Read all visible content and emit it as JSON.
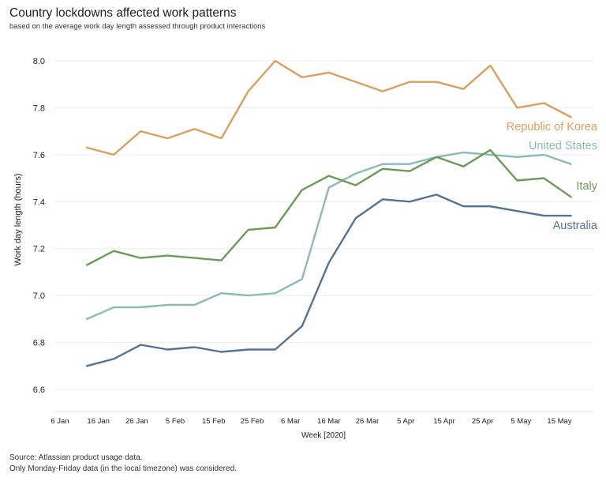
{
  "chart_data": {
    "type": "line",
    "title": "Country lockdowns affected work patterns",
    "subtitle": "based on the average work day length assessed through product interactions",
    "xlabel": "Week [2020]",
    "ylabel": "Work day length (hours)",
    "ylim": [
      6.6,
      8.0
    ],
    "yticks": [
      "6.6",
      "6.8",
      "7.0",
      "7.2",
      "7.4",
      "7.6",
      "7.8",
      "8.0"
    ],
    "xticks": [
      "6 Jan",
      "16 Jan",
      "26 Jan",
      "5 Feb",
      "15 Feb",
      "25 Feb",
      "6 Mar",
      "16 Mar",
      "26 Mar",
      "5 Apr",
      "15 Apr",
      "25 Apr",
      "5 May",
      "15 May"
    ],
    "x": [
      "2020-01-13",
      "2020-01-20",
      "2020-01-27",
      "2020-02-03",
      "2020-02-10",
      "2020-02-17",
      "2020-02-24",
      "2020-03-02",
      "2020-03-09",
      "2020-03-16",
      "2020-03-23",
      "2020-03-30",
      "2020-04-06",
      "2020-04-13",
      "2020-04-20",
      "2020-04-27",
      "2020-05-04",
      "2020-05-11",
      "2020-05-18"
    ],
    "grid": true,
    "legend": "direct labels at line ends",
    "series": [
      {
        "name": "Republic of Korea",
        "color": "#d9a05b",
        "values": [
          7.63,
          7.6,
          7.7,
          7.67,
          7.71,
          7.67,
          7.87,
          8.0,
          7.93,
          7.95,
          7.91,
          7.87,
          7.91,
          7.91,
          7.88,
          7.98,
          7.8,
          7.82,
          7.76
        ]
      },
      {
        "name": "United States",
        "color": "#8cbab4",
        "values": [
          6.9,
          6.95,
          6.95,
          6.96,
          6.96,
          7.01,
          7.0,
          7.01,
          7.07,
          7.46,
          7.52,
          7.56,
          7.56,
          7.59,
          7.61,
          7.6,
          7.59,
          7.6,
          7.56
        ]
      },
      {
        "name": "Italy",
        "color": "#6b9b58",
        "values": [
          7.13,
          7.19,
          7.16,
          7.17,
          7.16,
          7.15,
          7.28,
          7.29,
          7.45,
          7.51,
          7.47,
          7.54,
          7.53,
          7.59,
          7.55,
          7.62,
          7.49,
          7.5,
          7.42
        ]
      },
      {
        "name": "Australia",
        "color": "#557393",
        "values": [
          6.7,
          6.73,
          6.79,
          6.77,
          6.78,
          6.76,
          6.77,
          6.77,
          6.87,
          7.14,
          7.33,
          7.41,
          7.4,
          7.43,
          7.38,
          7.38,
          7.36,
          7.34,
          7.34
        ]
      }
    ]
  },
  "footer": {
    "source": "Source: Atlassian product usage data.",
    "note": "Only Monday-Friday data (in the local timezone) was considered."
  }
}
